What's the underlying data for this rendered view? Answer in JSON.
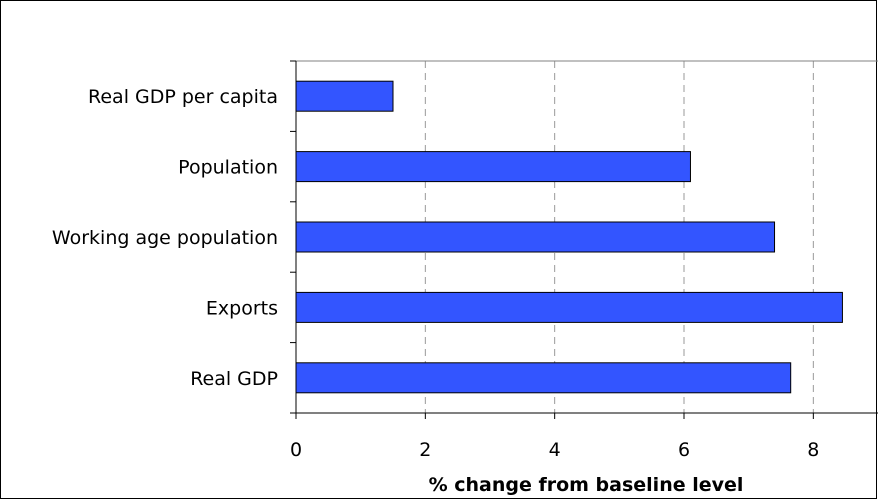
{
  "chart_data": {
    "type": "bar",
    "orientation": "horizontal",
    "categories": [
      "Real GDP per capita",
      "Population",
      "Working age population",
      "Exports",
      "Real GDP"
    ],
    "values": [
      1.5,
      6.1,
      7.4,
      8.45,
      7.65
    ],
    "xlabel": "% change from baseline level",
    "ylabel": "",
    "xlim": [
      0,
      9
    ],
    "xticks": [
      0,
      2,
      4,
      6,
      8
    ],
    "grid": "vertical-dashed",
    "bar_color": "#3355ff",
    "bar_edge_color": "#000000",
    "gridline_color": "#999999"
  }
}
